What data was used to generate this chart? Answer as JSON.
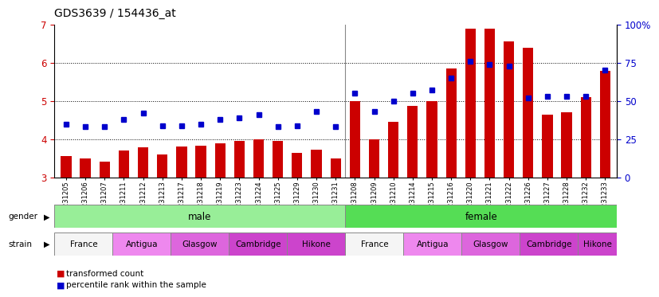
{
  "title": "GDS3639 / 154436_at",
  "samples": [
    "GSM231205",
    "GSM231206",
    "GSM231207",
    "GSM231211",
    "GSM231212",
    "GSM231213",
    "GSM231217",
    "GSM231218",
    "GSM231219",
    "GSM231223",
    "GSM231224",
    "GSM231225",
    "GSM231229",
    "GSM231230",
    "GSM231231",
    "GSM231208",
    "GSM231209",
    "GSM231210",
    "GSM231214",
    "GSM231215",
    "GSM231216",
    "GSM231220",
    "GSM231221",
    "GSM231222",
    "GSM231226",
    "GSM231227",
    "GSM231228",
    "GSM231232",
    "GSM231233"
  ],
  "bar_values": [
    3.55,
    3.5,
    3.42,
    3.7,
    3.78,
    3.6,
    3.8,
    3.82,
    3.9,
    3.95,
    4.0,
    3.95,
    3.65,
    3.73,
    3.5,
    5.0,
    4.0,
    4.45,
    4.88,
    5.0,
    5.85,
    6.9,
    6.9,
    6.55,
    6.4,
    4.65,
    4.7,
    5.1,
    5.78
  ],
  "blue_percentiles": [
    35,
    33,
    33,
    38,
    42,
    34,
    34,
    35,
    38,
    39,
    41,
    33,
    34,
    43,
    33,
    55,
    43,
    50,
    55,
    57,
    65,
    76,
    74,
    73,
    52,
    53,
    53,
    53,
    70
  ],
  "ylim": [
    3,
    7
  ],
  "yticks_left": [
    3,
    4,
    5,
    6,
    7
  ],
  "yticks_right": [
    0,
    25,
    50,
    75,
    100
  ],
  "bar_color": "#cc0000",
  "blue_color": "#0000cc",
  "n_male": 15,
  "gender_male_label": "male",
  "gender_female_label": "female",
  "gender_male_color": "#98ee98",
  "gender_female_color": "#55dd55",
  "strain_colors_map": {
    "France": "#f5f5f5",
    "Antigua": "#ee88ee",
    "Glasgow": "#dd66dd",
    "Cambridge": "#cc44cc",
    "Hikone": "#cc44cc"
  },
  "male_strains": [
    [
      "France",
      3
    ],
    [
      "Antigua",
      3
    ],
    [
      "Glasgow",
      3
    ],
    [
      "Cambridge",
      3
    ],
    [
      "Hikone",
      3
    ]
  ],
  "female_strains": [
    [
      "France",
      3
    ],
    [
      "Antigua",
      3
    ],
    [
      "Glasgow",
      3
    ],
    [
      "Cambridge",
      3
    ],
    [
      "Hikone",
      2
    ]
  ],
  "legend_bar_label": "transformed count",
  "legend_blue_label": "percentile rank within the sample",
  "title_fontsize": 10
}
